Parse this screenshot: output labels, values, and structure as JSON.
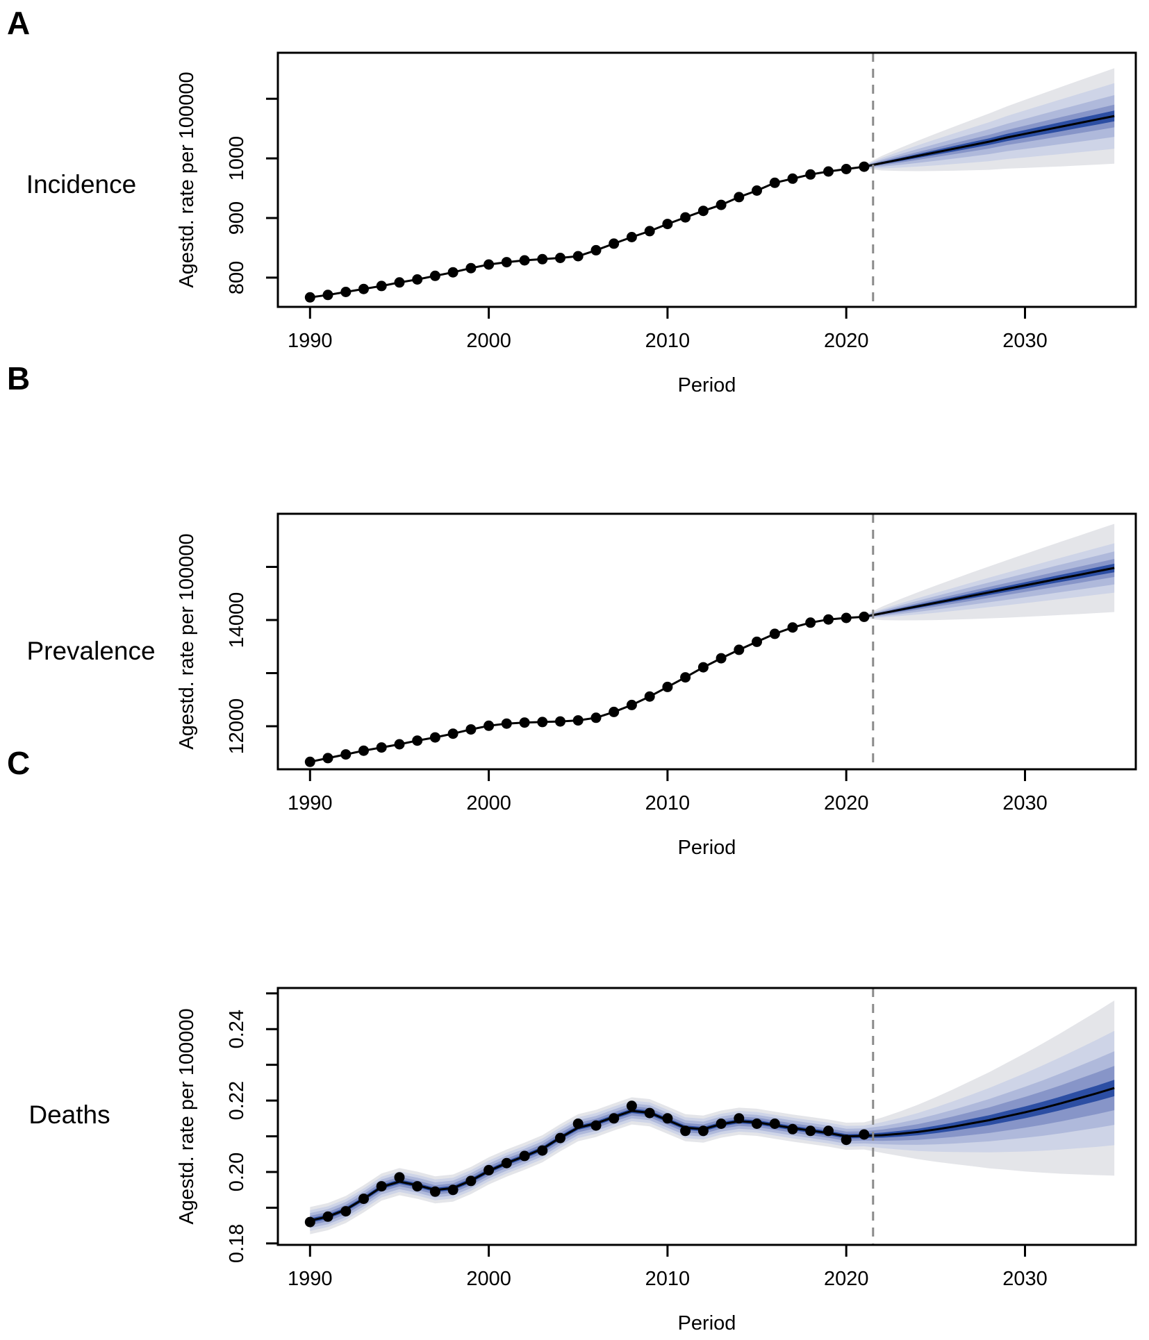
{
  "chart_data": [
    {
      "type": "line",
      "panel_letter": "A",
      "row_label": "Incidence",
      "xlabel": "Period",
      "ylabel": "Agestd. rate per 100000",
      "xlim": [
        1988.2,
        2036.2
      ],
      "ylim": [
        751,
        1177
      ],
      "x_ticks": [
        {
          "value": 1990,
          "label": "1990"
        },
        {
          "value": 2000,
          "label": "2000"
        },
        {
          "value": 2010,
          "label": "2010"
        },
        {
          "value": 2020,
          "label": "2020"
        },
        {
          "value": 2030,
          "label": "2030"
        }
      ],
      "y_ticks": [
        {
          "value": 800,
          "label": "800"
        },
        {
          "value": 900,
          "label": "900"
        },
        {
          "value": 1000,
          "label": "1000"
        },
        {
          "value": 1100,
          "label": ""
        }
      ],
      "forecast_divider_year": 2021.5,
      "observed": {
        "years": [
          1990,
          1991,
          1992,
          1993,
          1994,
          1995,
          1996,
          1997,
          1998,
          1999,
          2000,
          2001,
          2002,
          2003,
          2004,
          2005,
          2006,
          2007,
          2008,
          2009,
          2010,
          2011,
          2012,
          2013,
          2014,
          2015,
          2016,
          2017,
          2018,
          2019,
          2020,
          2021
        ],
        "values": [
          767,
          771,
          776,
          781,
          786,
          792,
          797,
          803,
          809,
          816,
          822,
          826,
          829,
          831,
          833,
          836,
          846,
          857,
          868,
          878,
          890,
          901,
          912,
          922,
          935,
          946,
          959,
          966,
          973,
          978,
          982,
          986
        ]
      },
      "forecast": {
        "years": [
          2021,
          2022,
          2023,
          2024,
          2025,
          2026,
          2027,
          2028,
          2029,
          2030,
          2031,
          2032,
          2033,
          2034,
          2035
        ],
        "median": [
          986,
          992,
          998,
          1004,
          1010,
          1016,
          1022,
          1028,
          1035,
          1041,
          1047,
          1053,
          1059,
          1065,
          1071
        ],
        "growth_exponent": 0.8,
        "bands": [
          {
            "color": "#e4e5e9",
            "halfwidth_start": 3.0,
            "halfwidth_end": 80
          },
          {
            "color": "#ced4e7",
            "halfwidth_start": 2.5,
            "halfwidth_end": 55
          },
          {
            "color": "#afb9db",
            "halfwidth_start": 2.0,
            "halfwidth_end": 35
          },
          {
            "color": "#8795c8",
            "halfwidth_start": 1.5,
            "halfwidth_end": 19
          },
          {
            "color": "#2c4ea3",
            "halfwidth_start": 1.0,
            "halfwidth_end": 9
          }
        ]
      },
      "point_color": "#000000",
      "line_color": "#000000",
      "divider_color": "#8a8a8a"
    },
    {
      "type": "line",
      "panel_letter": "B",
      "row_label": "Prevalence",
      "xlabel": "Period",
      "ylabel": "Agestd. rate per 100000",
      "xlim": [
        1988.2,
        2036.2
      ],
      "ylim": [
        11190,
        16000
      ],
      "x_ticks": [
        {
          "value": 1990,
          "label": "1990"
        },
        {
          "value": 2000,
          "label": "2000"
        },
        {
          "value": 2010,
          "label": "2010"
        },
        {
          "value": 2020,
          "label": "2020"
        },
        {
          "value": 2030,
          "label": "2030"
        }
      ],
      "y_ticks": [
        {
          "value": 12000,
          "label": "12000"
        },
        {
          "value": 13000,
          "label": ""
        },
        {
          "value": 14000,
          "label": "14000"
        },
        {
          "value": 15000,
          "label": ""
        }
      ],
      "forecast_divider_year": 2021.5,
      "observed": {
        "years": [
          1990,
          1991,
          1992,
          1993,
          1994,
          1995,
          1996,
          1997,
          1998,
          1999,
          2000,
          2001,
          2002,
          2003,
          2004,
          2005,
          2006,
          2007,
          2008,
          2009,
          2010,
          2011,
          2012,
          2013,
          2014,
          2015,
          2016,
          2017,
          2018,
          2019,
          2020,
          2021
        ],
        "values": [
          11330,
          11400,
          11470,
          11540,
          11600,
          11660,
          11730,
          11790,
          11860,
          11940,
          12010,
          12050,
          12070,
          12080,
          12090,
          12110,
          12160,
          12270,
          12400,
          12560,
          12740,
          12920,
          13110,
          13280,
          13440,
          13590,
          13740,
          13860,
          13950,
          14010,
          14040,
          14060
        ]
      },
      "forecast": {
        "years": [
          2021,
          2022,
          2023,
          2024,
          2025,
          2026,
          2027,
          2028,
          2029,
          2030,
          2031,
          2032,
          2033,
          2034,
          2035
        ],
        "median": [
          14060,
          14126,
          14192,
          14258,
          14323,
          14389,
          14455,
          14521,
          14586,
          14652,
          14718,
          14784,
          14849,
          14915,
          14980
        ],
        "growth_exponent": 0.8,
        "bands": [
          {
            "color": "#e4e5e9",
            "halfwidth_start": 30,
            "halfwidth_end": 830
          },
          {
            "color": "#ced4e7",
            "halfwidth_start": 25,
            "halfwidth_end": 465
          },
          {
            "color": "#afb9db",
            "halfwidth_start": 20,
            "halfwidth_end": 310
          },
          {
            "color": "#8795c8",
            "halfwidth_start": 15,
            "halfwidth_end": 170
          },
          {
            "color": "#2c4ea3",
            "halfwidth_start": 10,
            "halfwidth_end": 80
          }
        ]
      },
      "point_color": "#000000",
      "line_color": "#000000",
      "divider_color": "#8a8a8a"
    },
    {
      "type": "line",
      "panel_letter": "C",
      "row_label": "Deaths",
      "xlabel": "Period",
      "ylabel": "Agestd. rate per 100000",
      "xlim": [
        1988.2,
        2036.2
      ],
      "ylim": [
        0.1796,
        0.2515
      ],
      "x_ticks": [
        {
          "value": 1990,
          "label": "1990"
        },
        {
          "value": 2000,
          "label": "2000"
        },
        {
          "value": 2010,
          "label": "2010"
        },
        {
          "value": 2020,
          "label": "2020"
        },
        {
          "value": 2030,
          "label": "2030"
        }
      ],
      "y_ticks": [
        {
          "value": 0.18,
          "label": "0.18"
        },
        {
          "value": 0.19,
          "label": ""
        },
        {
          "value": 0.2,
          "label": "0.20"
        },
        {
          "value": 0.21,
          "label": ""
        },
        {
          "value": 0.22,
          "label": "0.22"
        },
        {
          "value": 0.23,
          "label": ""
        },
        {
          "value": 0.24,
          "label": "0.24"
        },
        {
          "value": 0.25,
          "label": ""
        }
      ],
      "forecast_divider_year": 2021.5,
      "observed": {
        "years": [
          1990,
          1991,
          1992,
          1993,
          1994,
          1995,
          1996,
          1997,
          1998,
          1999,
          2000,
          2001,
          2002,
          2003,
          2004,
          2005,
          2006,
          2007,
          2008,
          2009,
          2010,
          2011,
          2012,
          2013,
          2014,
          2015,
          2016,
          2017,
          2018,
          2019,
          2020,
          2021
        ],
        "values": [
          0.186,
          0.1875,
          0.189,
          0.1925,
          0.196,
          0.1985,
          0.196,
          0.1945,
          0.195,
          0.1975,
          0.2005,
          0.2025,
          0.2045,
          0.206,
          0.2095,
          0.2135,
          0.213,
          0.215,
          0.2185,
          0.2165,
          0.215,
          0.2115,
          0.2115,
          0.2135,
          0.215,
          0.2135,
          0.2135,
          0.212,
          0.2115,
          0.2115,
          0.209,
          0.2105
        ]
      },
      "fit": {
        "years": [
          1990,
          1991,
          1992,
          1993,
          1994,
          1995,
          1996,
          1997,
          1998,
          1999,
          2000,
          2001,
          2002,
          2003,
          2004,
          2005,
          2006,
          2007,
          2008,
          2009,
          2010,
          2011,
          2012,
          2013,
          2014,
          2015,
          2016,
          2017,
          2018,
          2019,
          2020,
          2021
        ],
        "values": [
          0.1864,
          0.1875,
          0.1895,
          0.1925,
          0.1958,
          0.1973,
          0.1963,
          0.195,
          0.1955,
          0.1976,
          0.2003,
          0.2025,
          0.2044,
          0.2065,
          0.2096,
          0.2124,
          0.2136,
          0.2154,
          0.2171,
          0.2166,
          0.2145,
          0.2124,
          0.212,
          0.2134,
          0.2142,
          0.2139,
          0.2131,
          0.2123,
          0.2116,
          0.2109,
          0.21,
          0.2101
        ]
      },
      "forecast": {
        "years": [
          2021,
          2022,
          2023,
          2024,
          2025,
          2026,
          2027,
          2028,
          2029,
          2030,
          2031,
          2032,
          2033,
          2034,
          2035
        ],
        "median": [
          0.2101,
          0.2103,
          0.2107,
          0.2112,
          0.2119,
          0.2127,
          0.2136,
          0.2145,
          0.2156,
          0.2167,
          0.2179,
          0.2192,
          0.2206,
          0.222,
          0.2235
        ],
        "growth_exponent": 1.1,
        "bands": [
          {
            "color": "#e4e5e9",
            "halfwidth_start": 0.0038,
            "halfwidth_end": 0.0245
          },
          {
            "color": "#ced4e7",
            "halfwidth_start": 0.0029,
            "halfwidth_end": 0.016
          },
          {
            "color": "#afb9db",
            "halfwidth_start": 0.0021,
            "halfwidth_end": 0.0103
          },
          {
            "color": "#8795c8",
            "halfwidth_start": 0.0013,
            "halfwidth_end": 0.0062
          },
          {
            "color": "#2c4ea3",
            "halfwidth_start": 0.0006,
            "halfwidth_end": 0.0023
          }
        ]
      },
      "point_color": "#000000",
      "line_color": "#000000",
      "divider_color": "#8a8a8a"
    }
  ]
}
